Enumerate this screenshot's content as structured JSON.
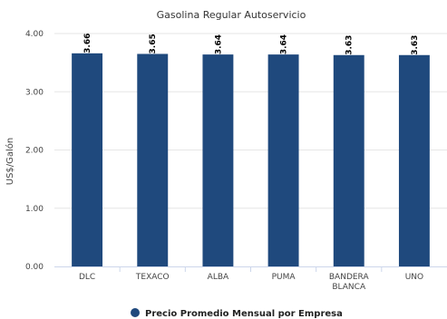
{
  "chart_data": {
    "type": "bar",
    "title": "Gasolina Regular Autoservicio",
    "ylabel": "US$/Galón",
    "xlabel": "",
    "categories": [
      [
        "DLC"
      ],
      [
        "TEXACO"
      ],
      [
        "ALBA"
      ],
      [
        "PUMA"
      ],
      [
        "BANDERA",
        "BLANCA"
      ],
      [
        "UNO"
      ]
    ],
    "series": [
      {
        "name": "Precio Promedio Mensual por Empresa",
        "values": [
          3.66,
          3.65,
          3.64,
          3.64,
          3.63,
          3.63
        ],
        "color": "#1f497d"
      }
    ],
    "ylim": [
      0,
      4
    ],
    "yticks": [
      "0.00",
      "1.00",
      "2.00",
      "3.00",
      "4.00"
    ],
    "grid": true,
    "legend_position": "bottom-center"
  }
}
